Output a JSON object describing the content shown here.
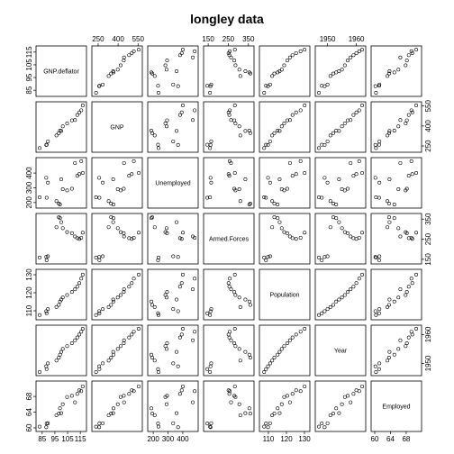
{
  "chart_data": {
    "type": "scatter",
    "title": "longley data",
    "variables": [
      "GNP.deflator",
      "GNP",
      "Unemployed",
      "Armed.Forces",
      "Population",
      "Year",
      "Employed"
    ],
    "ranges": [
      [
        83,
        117
      ],
      [
        230,
        555
      ],
      [
        187,
        480
      ],
      [
        145,
        360
      ],
      [
        107,
        131
      ],
      [
        1947,
        1962
      ],
      [
        60,
        71
      ]
    ],
    "ticks": [
      [
        85,
        95,
        105,
        115
      ],
      [
        250,
        400,
        550
      ],
      [
        200,
        300,
        400
      ],
      [
        150,
        250,
        350
      ],
      [
        110,
        120,
        130
      ],
      [
        1950,
        1960
      ],
      [
        60,
        64,
        68
      ]
    ],
    "data": [
      [
        83.0,
        234.289,
        235.6,
        159.0,
        107.608,
        1947,
        60.323
      ],
      [
        88.5,
        259.426,
        232.5,
        145.6,
        108.632,
        1948,
        61.122
      ],
      [
        88.2,
        258.054,
        368.2,
        161.6,
        109.773,
        1949,
        60.171
      ],
      [
        89.5,
        284.599,
        335.1,
        165.0,
        110.929,
        1950,
        61.187
      ],
      [
        96.2,
        328.975,
        209.9,
        309.9,
        112.075,
        1951,
        63.221
      ],
      [
        98.1,
        346.999,
        193.2,
        359.4,
        113.27,
        1952,
        63.639
      ],
      [
        99.0,
        365.385,
        187.0,
        354.7,
        115.094,
        1953,
        64.989
      ],
      [
        100.0,
        363.112,
        357.8,
        335.0,
        116.219,
        1954,
        63.761
      ],
      [
        101.2,
        397.469,
        290.4,
        304.8,
        117.388,
        1955,
        66.019
      ],
      [
        104.6,
        419.18,
        282.2,
        285.7,
        118.734,
        1956,
        67.857
      ],
      [
        108.4,
        442.769,
        293.6,
        279.8,
        120.445,
        1957,
        68.169
      ],
      [
        110.8,
        444.546,
        468.1,
        263.7,
        121.95,
        1958,
        66.513
      ],
      [
        112.6,
        482.704,
        381.3,
        255.2,
        123.366,
        1959,
        68.655
      ],
      [
        114.2,
        502.601,
        393.1,
        251.4,
        125.368,
        1960,
        69.564
      ],
      [
        115.7,
        518.173,
        480.6,
        257.2,
        127.852,
        1961,
        69.331
      ],
      [
        116.9,
        554.894,
        400.7,
        282.7,
        130.081,
        1962,
        70.551
      ]
    ]
  }
}
